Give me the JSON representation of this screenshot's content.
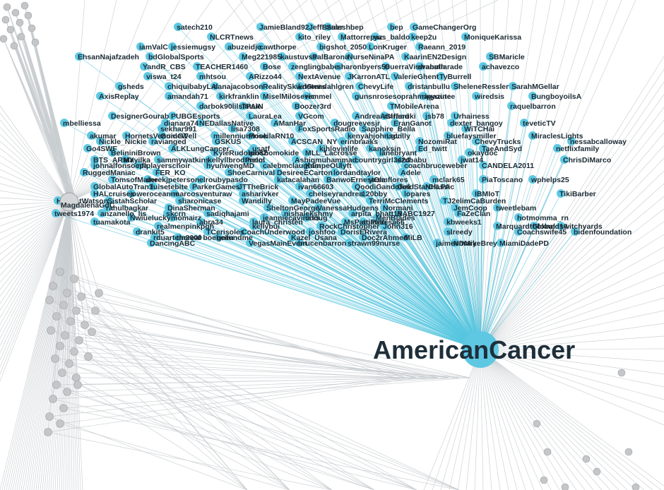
{
  "hub": {
    "label": "AmericanCancer"
  },
  "secondary_hub": {
    "label": "MagdalenaGdC"
  },
  "colors": {
    "connected_node": "#5ec8e3",
    "edge": "#56c6e0",
    "background_node": "#c4c6c8",
    "background_edge": "#c8cdd0"
  },
  "nodes": [
    "satech210",
    "JamieBland92",
    "JeffBauer",
    "Saleshbep",
    "bep",
    "GameChangerOrg",
    "NLCRTnews",
    "kito_riley",
    "Mattorrepaz",
    "yas_baldo",
    "keep2u",
    "MoniqueKarissa",
    "iamValC",
    "jessiemugsy",
    "abuzeidjo",
    "cawthorpe",
    "bigshot_2050",
    "LonKruger",
    "Raeann_2019",
    "EhsanNajafzadeh",
    "bdGlobalSports",
    "Meg221985",
    "kaustuvss",
    "PalBarona",
    "NurseNinaPA",
    "KaarinEN2Design",
    "SBMaricle",
    "YandR_CBS",
    "TEACHER1460",
    "Bose",
    "zenglingbabe",
    "sharonbyers50",
    "GuerraViswanath",
    "drabullarade",
    "achavezco",
    "viswa_t24",
    "mhtsou",
    "ARizzo44",
    "NextAvenue",
    "JKarronATL",
    "ValerieGhent",
    "TyBurrell",
    "gsheds",
    "chiquibabyLA",
    "danajacobson",
    "RealitySkwdGmrs",
    "kristendahlgren",
    "ChevyLife",
    "dristanbullu",
    "SheleneRessler",
    "SarahMGellar",
    "AxisReplay",
    "amandah71",
    "kirkfranklin",
    "MiselMilosevic",
    "remmel",
    "gunsnrosesoprahmagazine",
    "ripyoutee",
    "wiredsis",
    "BungboyoilsA",
    "darbok90lilsimsie",
    "TPAIN",
    "Boozer3rd",
    "TMobileArena",
    "raquelbarron",
    "DesignerGourab",
    "PUBGEsports",
    "LauraLea",
    "VGcom",
    "AndreaAStrand",
    "asiffaruki",
    "jsb78",
    "Urhainess",
    "mbelliessa",
    "dianara74",
    "NEDallasNative",
    "AManHar",
    "dougreevesjr",
    "EranGanot",
    "dexter_bangoy",
    "teveticTV",
    "sekhar991",
    "lisa7308",
    "FoxSportsRadio",
    "Sapphire_Bella",
    "WiTCHai",
    "akumar",
    "HornetsVenomGT",
    "GuideWell",
    "millenniumlook",
    "PriscilaRN10",
    "kenyahjohnson",
    "LgLilly",
    "bluefaysmiller",
    "MiraclesLights",
    "Nickle_Nickie",
    "ravianged",
    "GSKUS",
    "ACSCAN_NY",
    "erinbraaks",
    "NozomiRat",
    "ChevyTrucks",
    "nessabcalloway",
    "Go4SWF",
    "ALKLungCancer",
    "usatf",
    "kjhlovinlife",
    "kanoksin",
    "Ed_twitt",
    "TaeAndSyd",
    "netflixfamily",
    "BelininiBrown",
    "KyleRudolph82",
    "moshomokide",
    "MLL_Lacrosse",
    "lanebryant",
    "okaydoc",
    "BTS_ARMY",
    "Mayilka",
    "sammywatkins",
    "kellyllbrodtmom",
    "Pielol",
    "Ashiqmuhammad",
    "countrygirl3424",
    "szcbabu",
    "jwat14",
    "ChrisDiMarco",
    "johnalfonsocpa",
    "nflplayerschoir",
    "hyunwengMD",
    "calebmclaughlin",
    "KampeOU",
    "lyft",
    "coachbruceweber",
    "CANDELA2011",
    "RuggedManiac",
    "FER_KO",
    "ShoeCarnival",
    "DesireeECarton",
    "lordandtaylor",
    "Adele",
    "TomsofMaine",
    "derekjpeterson",
    "elroubypasdo",
    "katacalahan",
    "BanwoErnestOla",
    "yesmflores",
    "mclark65",
    "PiaToscano",
    "wphelps25",
    "GlobalAutoTran1",
    "luisetebite",
    "ParkerGames",
    "JTTheBrick",
    "ivan66603",
    "QoodiGandofini",
    "GoldStarClassic",
    "NHLPA",
    "HALcruises",
    "joweroceanne",
    "marcosventuraw",
    "asharivker",
    "chelseyrandrea",
    "120bby",
    "lopares",
    "IBMIoT",
    "TikiBarber",
    "HGrantWatson",
    "SistahScholar",
    "sharonicase",
    "Wandilly",
    "MayPadeeVue",
    "TerriMcClements",
    "TJ2elimCaBurden",
    "rahulbagkar",
    "DinaSherman",
    "SheltonGeorge",
    "VanessaHudgens",
    "Normani",
    "JemCoop",
    "tweetlebam",
    "tweets1974",
    "anzanello_lis",
    "skcrn",
    "sadiqhajami",
    "nishalekshmy",
    "arpita_bhatt19",
    "NABC1927",
    "FaZeClan",
    "Nwiuelucky",
    "momairz",
    "jeanniecaviness",
    "cdoug",
    "MenBlades",
    "hotmomma_rn",
    "tuamakota",
    "abra34",
    "laura_christen",
    "MsPattiPatti",
    "anateresa66",
    "kbweeks1",
    "realmenpinkpgh",
    "kellybui",
    "RockChristopher",
    "John316",
    "MarquardtGlobal",
    "bbknnd16",
    "switchyards",
    "drankit5",
    "TCerisoles",
    "CoachUnderwood",
    "joshfoo",
    "DorisERivera",
    "slreedy",
    "Coachswife45",
    "bidenfoundation",
    "rduartem2000",
    "thereal boeheim",
    "gofundme",
    "Kazel_Usana",
    "Doc2rAhmed",
    "MiLB",
    "DancingABC",
    "VegasMainEvent",
    "brucenbarron",
    "strawn99nurse",
    "jaimeemary",
    "NDMikeBrey",
    "MiamiDadePD"
  ]
}
